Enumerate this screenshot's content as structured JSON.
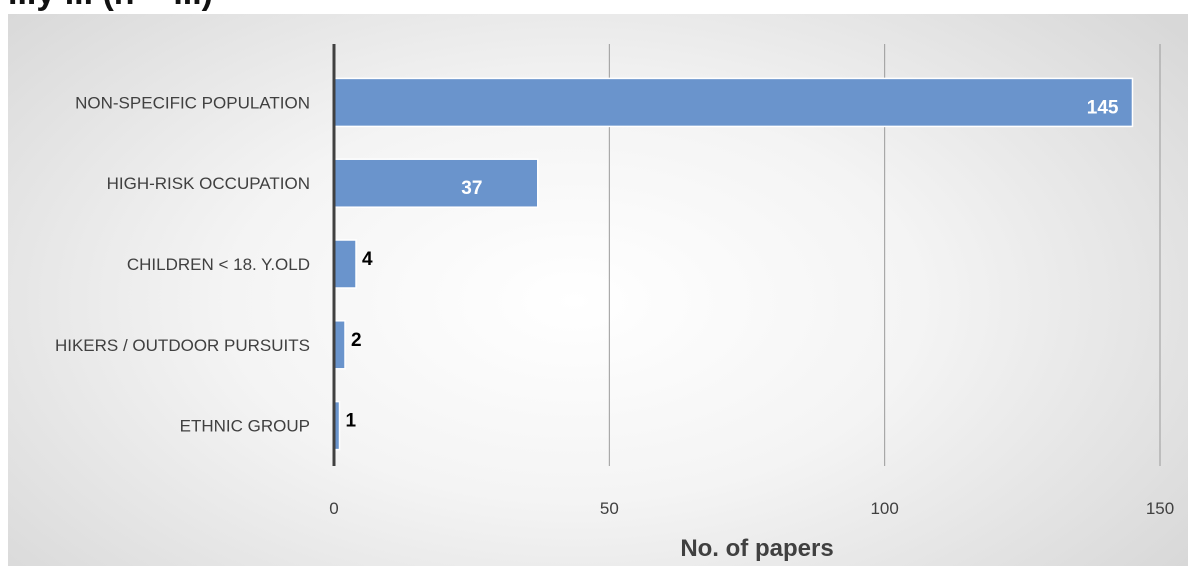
{
  "page": {
    "title_partial": "...y ... (n = ...)"
  },
  "chart_data": {
    "type": "bar",
    "orientation": "horizontal",
    "categories": [
      "NON-SPECIFIC POPULATION",
      "HIGH-RISK OCCUPATION",
      "CHILDREN < 18. Y.OLD",
      "HIKERS / OUTDOOR PURSUITS",
      "ETHNIC GROUP"
    ],
    "values": [
      145,
      37,
      4,
      2,
      1
    ],
    "data_labels": [
      "145",
      "37",
      "4",
      "2",
      "1"
    ],
    "xlabel": "No. of papers",
    "ylabel": "",
    "xlim": [
      0,
      150
    ],
    "x_ticks": [
      0,
      50,
      100,
      150
    ],
    "grid": "vertical",
    "legend": "none",
    "colors": {
      "bar": "#6a94cc",
      "bar_edge": "#ffffff",
      "gridline": "#9a9a9a",
      "axis": "#404040"
    }
  }
}
